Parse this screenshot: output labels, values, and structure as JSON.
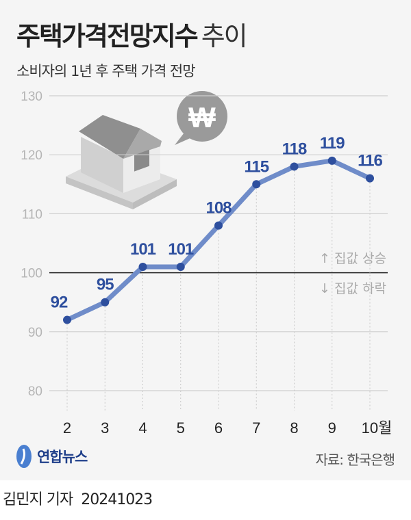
{
  "chart_data": {
    "type": "line",
    "title": "주택가격전망지수",
    "title_suffix": "추이",
    "subtitle": "소비자의 1년 후 주택 가격 전망",
    "categories": [
      "2",
      "3",
      "4",
      "5",
      "6",
      "7",
      "8",
      "9",
      "10월"
    ],
    "values": [
      92,
      95,
      101,
      101,
      108,
      115,
      118,
      119,
      116
    ],
    "ylim": [
      80,
      130
    ],
    "yticks": [
      80,
      90,
      100,
      110,
      120,
      130
    ],
    "reference_line": 100,
    "annotations": {
      "up": "↑ 집값 상승",
      "down": "↓ 집값 하락"
    },
    "grid": true,
    "line_color": "#6f8cc9",
    "marker_color": "#2e4f9e",
    "label_color": "#2e4f9e"
  },
  "footer": {
    "logo": "연합뉴스",
    "source": "자료: 한국은행"
  },
  "byline": {
    "reporter": "김민지 기자",
    "date": "20241023"
  },
  "icons": {
    "house": "house-icon",
    "won": "won-speech-bubble-icon"
  }
}
